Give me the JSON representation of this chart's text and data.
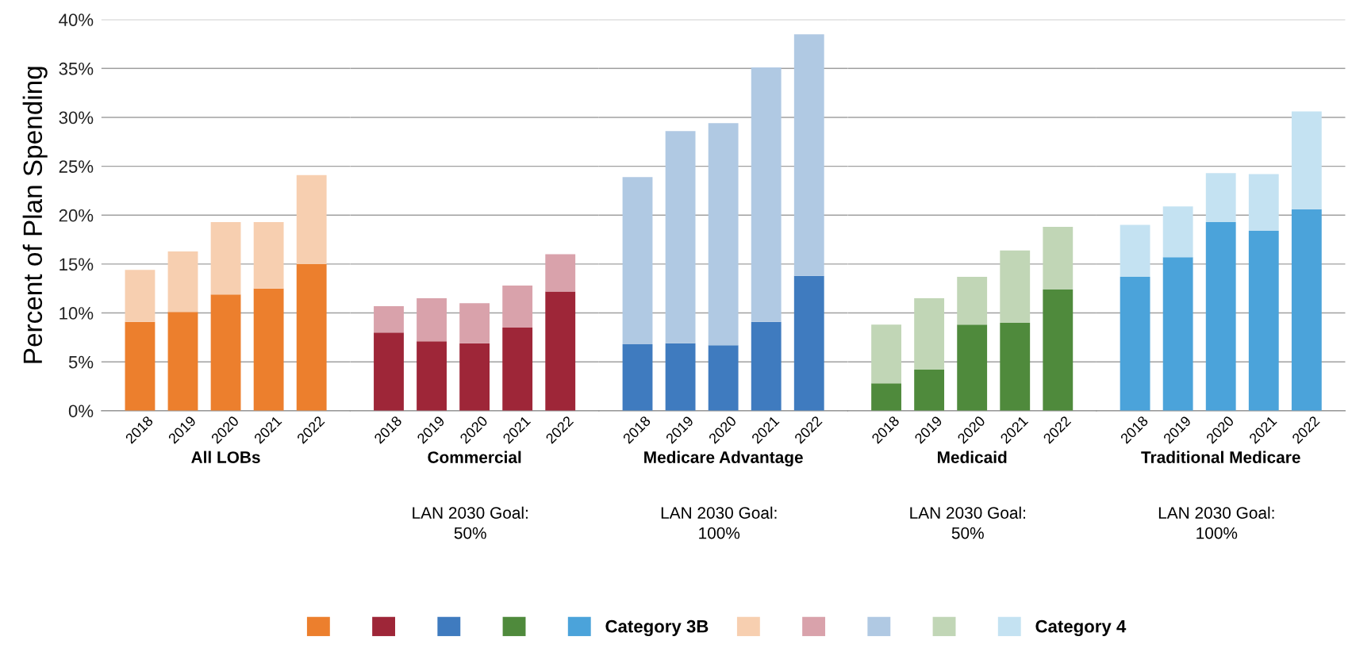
{
  "chart_data": [
    {
      "type": "bar",
      "stacked": true,
      "categories": [
        "2018",
        "2019",
        "2020",
        "2021",
        "2022"
      ],
      "xlabel": "All LOBs",
      "ylabel": "Percent of Plan Spending",
      "ylim": [
        0,
        40
      ],
      "yticks": [
        {
          "value": 0,
          "label": "0%"
        },
        {
          "value": 5,
          "label": "5%"
        },
        {
          "value": 10,
          "label": "10%"
        },
        {
          "value": 15,
          "label": "15%"
        },
        {
          "value": 20,
          "label": "20%"
        },
        {
          "value": 25,
          "label": "25%"
        },
        {
          "value": 30,
          "label": "30%"
        },
        {
          "value": 35,
          "label": "35%"
        },
        {
          "value": 40,
          "label": "40%"
        }
      ],
      "grid": "y",
      "series": [
        {
          "color": "#ec7f2d",
          "values": [
            9.1,
            10.1,
            11.9,
            12.5,
            15.0
          ]
        },
        {
          "color": "#f7cfb0",
          "values": [
            5.3,
            6.2,
            7.4,
            6.8,
            9.1
          ]
        }
      ]
    },
    {
      "type": "bar",
      "stacked": true,
      "categories": [
        "2018",
        "2019",
        "2020",
        "2021",
        "2022"
      ],
      "xlabel": "Commercial",
      "annotations": [
        "LAN 2030 Goal:\n50%"
      ],
      "ylim": [
        0,
        40
      ],
      "grid": "y",
      "tick_labels": "x",
      "series": [
        {
          "color": "#9e2638",
          "values": [
            8.0,
            7.1,
            6.9,
            8.5,
            12.2
          ]
        },
        {
          "color": "#d9a2ab",
          "values": [
            2.7,
            4.4,
            4.1,
            4.3,
            3.8
          ]
        }
      ]
    },
    {
      "type": "bar",
      "stacked": true,
      "categories": [
        "2018",
        "2019",
        "2020",
        "2021",
        "2022"
      ],
      "xlabel": "Medicare Advantage",
      "annotations": [
        "LAN 2030 Goal:\n100%"
      ],
      "ylim": [
        0,
        40
      ],
      "grid": "y",
      "tick_labels": "x",
      "series": [
        {
          "color": "#3f7bbf",
          "values": [
            6.8,
            6.9,
            6.7,
            9.1,
            13.8
          ]
        },
        {
          "color": "#b0c9e3",
          "values": [
            17.1,
            21.7,
            22.7,
            26.0,
            24.7
          ]
        }
      ]
    },
    {
      "type": "bar",
      "stacked": true,
      "categories": [
        "2018",
        "2019",
        "2020",
        "2021",
        "2022"
      ],
      "xlabel": "Medicaid",
      "annotations": [
        "LAN 2030 Goal:\n50%"
      ],
      "ylim": [
        0,
        40
      ],
      "grid": "y",
      "tick_labels": "x",
      "series": [
        {
          "color": "#4f8a3c",
          "values": [
            2.8,
            4.2,
            8.8,
            9.0,
            12.4
          ]
        },
        {
          "color": "#c1d6b6",
          "values": [
            6.0,
            7.3,
            4.9,
            7.4,
            6.4
          ]
        }
      ]
    },
    {
      "type": "bar",
      "stacked": true,
      "categories": [
        "2018",
        "2019",
        "2020",
        "2021",
        "2022"
      ],
      "xlabel": "Traditional Medicare",
      "annotations": [
        "LAN 2030 Goal:\n100%"
      ],
      "ylim": [
        0,
        40
      ],
      "grid": "y",
      "tick_labels": "x",
      "legend": "bottom",
      "series": [
        {
          "name": "Category 3B",
          "color": "#4ba3da",
          "values": [
            13.7,
            15.7,
            19.3,
            18.4,
            20.6
          ]
        },
        {
          "name": "Category 4",
          "color": "#c4e2f2",
          "values": [
            5.3,
            5.2,
            5.0,
            5.8,
            10.0
          ]
        }
      ]
    }
  ]
}
